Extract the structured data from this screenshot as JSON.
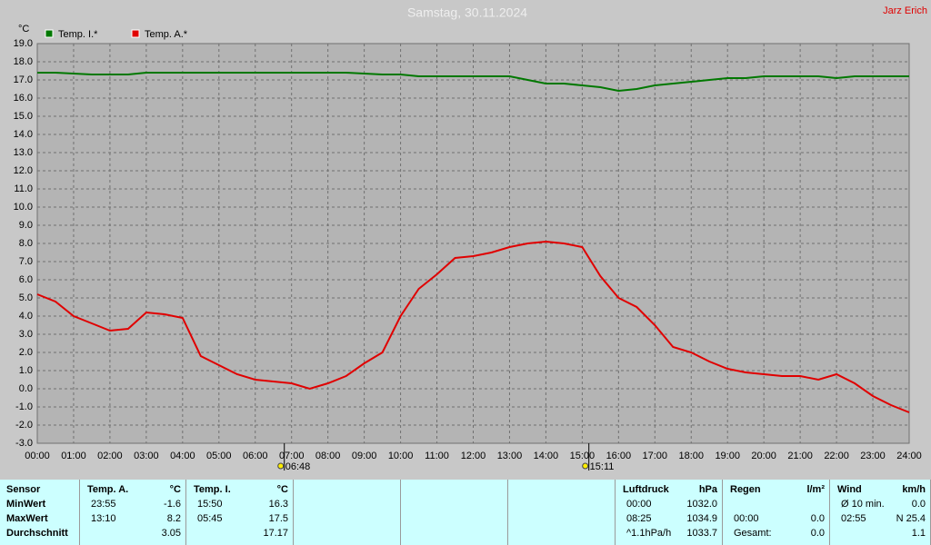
{
  "chart_data": {
    "type": "line",
    "title": "Samstag, 30.11.2024",
    "author": "Jarz Erich",
    "y_label": "°C",
    "x": [
      0,
      0.5,
      1,
      1.5,
      2,
      2.5,
      3,
      3.5,
      4,
      4.5,
      5,
      5.5,
      6,
      6.5,
      7,
      7.5,
      8,
      8.5,
      9,
      9.5,
      10,
      10.5,
      11,
      11.5,
      12,
      12.5,
      13,
      13.5,
      14,
      14.5,
      15,
      15.5,
      16,
      16.5,
      17,
      17.5,
      18,
      18.5,
      19,
      19.5,
      20,
      20.5,
      21,
      21.5,
      22,
      22.5,
      23,
      23.5,
      24
    ],
    "series": [
      {
        "name": "Temp. I.*",
        "color": "#007800",
        "values": [
          17.4,
          17.4,
          17.35,
          17.3,
          17.3,
          17.3,
          17.4,
          17.4,
          17.4,
          17.4,
          17.4,
          17.4,
          17.4,
          17.4,
          17.4,
          17.4,
          17.4,
          17.4,
          17.35,
          17.3,
          17.3,
          17.2,
          17.2,
          17.2,
          17.2,
          17.2,
          17.2,
          17.0,
          16.8,
          16.8,
          16.7,
          16.6,
          16.4,
          16.5,
          16.7,
          16.8,
          16.9,
          17.0,
          17.1,
          17.1,
          17.2,
          17.2,
          17.2,
          17.2,
          17.1,
          17.2,
          17.2,
          17.2,
          17.2
        ]
      },
      {
        "name": "Temp. A.*",
        "color": "#e00000",
        "values": [
          5.2,
          4.8,
          4.0,
          3.6,
          3.2,
          3.3,
          4.2,
          4.1,
          3.9,
          1.8,
          1.3,
          0.8,
          0.5,
          0.4,
          0.3,
          0.0,
          0.3,
          0.7,
          1.4,
          2.0,
          4.0,
          5.5,
          6.3,
          7.2,
          7.3,
          7.5,
          7.8,
          8.0,
          8.1,
          8.0,
          7.8,
          6.2,
          5.0,
          4.5,
          3.5,
          2.3,
          2.0,
          1.5,
          1.1,
          0.9,
          0.8,
          0.7,
          0.7,
          0.5,
          0.8,
          0.3,
          -0.4,
          -0.9,
          -1.3
        ]
      }
    ],
    "xlim": [
      0,
      24
    ],
    "xticks": [
      {
        "value": 0,
        "label": "00:00"
      },
      {
        "value": 1,
        "label": "01:00"
      },
      {
        "value": 2,
        "label": "02:00"
      },
      {
        "value": 3,
        "label": "03:00"
      },
      {
        "value": 4,
        "label": "04:00"
      },
      {
        "value": 5,
        "label": "05:00"
      },
      {
        "value": 6,
        "label": "06:00"
      },
      {
        "value": 7,
        "label": "07:00"
      },
      {
        "value": 8,
        "label": "08:00"
      },
      {
        "value": 9,
        "label": "09:00"
      },
      {
        "value": 10,
        "label": "10:00"
      },
      {
        "value": 11,
        "label": "11:00"
      },
      {
        "value": 12,
        "label": "12:00"
      },
      {
        "value": 13,
        "label": "13:00"
      },
      {
        "value": 14,
        "label": "14:00"
      },
      {
        "value": 15,
        "label": "15:00"
      },
      {
        "value": 16,
        "label": "16:00"
      },
      {
        "value": 17,
        "label": "17:00"
      },
      {
        "value": 18,
        "label": "18:00"
      },
      {
        "value": 19,
        "label": "19:00"
      },
      {
        "value": 20,
        "label": "20:00"
      },
      {
        "value": 21,
        "label": "21:00"
      },
      {
        "value": 22,
        "label": "22:00"
      },
      {
        "value": 23,
        "label": "23:00"
      },
      {
        "value": 24,
        "label": "24:00"
      }
    ],
    "ylim": [
      -3,
      19
    ],
    "yticks": [
      {
        "value": 19,
        "label": "19.0"
      },
      {
        "value": 18,
        "label": "18.0"
      },
      {
        "value": 17,
        "label": "17.0"
      },
      {
        "value": 16,
        "label": "16.0"
      },
      {
        "value": 15,
        "label": "15.0"
      },
      {
        "value": 14,
        "label": "14.0"
      },
      {
        "value": 13,
        "label": "13.0"
      },
      {
        "value": 12,
        "label": "12.0"
      },
      {
        "value": 11,
        "label": "11.0"
      },
      {
        "value": 10,
        "label": "10.0"
      },
      {
        "value": 9,
        "label": "9.0"
      },
      {
        "value": 8,
        "label": "8.0"
      },
      {
        "value": 7,
        "label": "7.0"
      },
      {
        "value": 6,
        "label": "6.0"
      },
      {
        "value": 5,
        "label": "5.0"
      },
      {
        "value": 4,
        "label": "4.0"
      },
      {
        "value": 3,
        "label": "3.0"
      },
      {
        "value": 2,
        "label": "2.0"
      },
      {
        "value": 1,
        "label": "1.0"
      },
      {
        "value": 0,
        "label": "0.0"
      },
      {
        "value": -1,
        "label": "-1.0"
      },
      {
        "value": -2,
        "label": "-2.0"
      },
      {
        "value": -3,
        "label": "-3.0"
      }
    ],
    "grid": true,
    "annotations": [
      {
        "x": 6.8,
        "label": "06:48"
      },
      {
        "x": 15.183,
        "label": "15:11"
      }
    ]
  },
  "table": {
    "groups": [
      {
        "columns": [
          [
            "Sensor",
            "MinWert",
            "MaxWert",
            "Durchschnitt"
          ]
        ]
      },
      {
        "columns": [
          [
            "Temp. A.",
            "23:55",
            "13:10",
            null
          ],
          [
            "°C",
            "-1.6",
            "8.2",
            "3.05"
          ]
        ]
      },
      {
        "columns": [
          [
            "Temp. I.",
            "15:50",
            "05:45",
            null
          ],
          [
            "°C",
            "16.3",
            "17.5",
            "17.17"
          ]
        ]
      },
      null,
      null,
      null,
      {
        "columns": [
          [
            "Luftdruck",
            "00:00",
            "08:25",
            "^1.1hPa/h"
          ],
          [
            "hPa",
            "1032.0",
            "1034.9",
            "1033.7"
          ]
        ]
      },
      {
        "columns": [
          [
            "Regen",
            null,
            "00:00",
            "Gesamt:"
          ],
          [
            "l/m²",
            null,
            "0.0",
            "0.0"
          ]
        ]
      },
      {
        "columns": [
          [
            "Wind",
            "Ø 10 min.",
            "02:55",
            null
          ],
          [
            "km/h",
            "0.0",
            "N 25.4",
            "1.1"
          ]
        ]
      }
    ]
  }
}
